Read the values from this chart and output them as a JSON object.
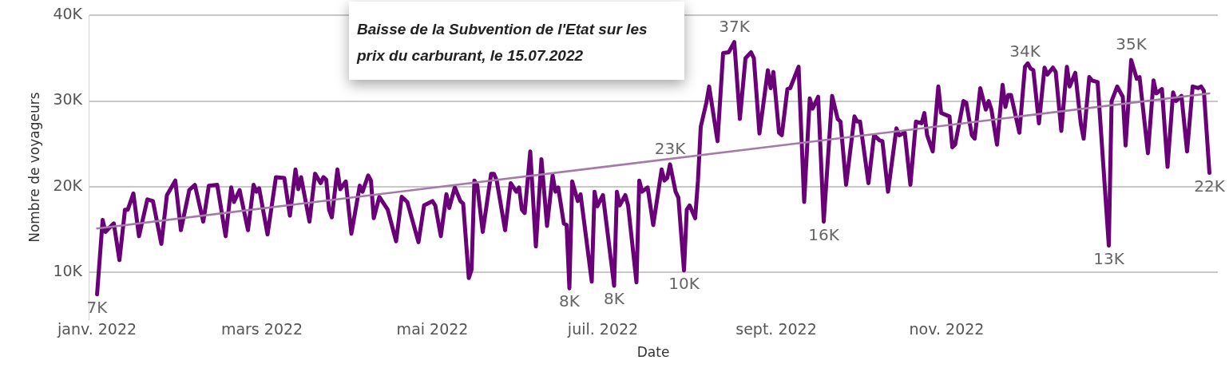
{
  "chart_data": {
    "type": "line",
    "xlabel": "Date",
    "ylabel": "Nombre de voyageurs",
    "annotations": [
      "Baisse de la Subvention de l'Etat sur les prix du carburant, le 15.07.2022"
    ],
    "x": [
      "2022-01-01",
      "2022-01-03",
      "2022-01-04",
      "2022-01-07",
      "2022-01-09",
      "2022-01-11",
      "2022-01-12",
      "2022-01-14",
      "2022-01-16",
      "2022-01-19",
      "2022-01-21",
      "2022-01-24",
      "2022-01-26",
      "2022-01-29",
      "2022-01-31",
      "2022-02-03",
      "2022-02-05",
      "2022-02-08",
      "2022-02-10",
      "2022-02-13",
      "2022-02-16",
      "2022-02-18",
      "2022-02-19",
      "2022-02-21",
      "2022-02-24",
      "2022-02-26",
      "2022-02-27",
      "2022-02-28",
      "2022-03-03",
      "2022-03-06",
      "2022-03-09",
      "2022-03-11",
      "2022-03-13",
      "2022-03-14",
      "2022-03-15",
      "2022-03-18",
      "2022-03-20",
      "2022-03-22",
      "2022-03-23",
      "2022-03-24",
      "2022-03-25",
      "2022-03-26",
      "2022-03-28",
      "2022-03-29",
      "2022-03-31",
      "2022-04-02",
      "2022-04-05",
      "2022-04-06",
      "2022-04-08",
      "2022-04-09",
      "2022-04-10",
      "2022-04-12",
      "2022-04-15",
      "2022-04-18",
      "2022-04-20",
      "2022-04-22",
      "2022-04-26",
      "2022-04-28",
      "2022-05-01",
      "2022-05-02",
      "2022-05-04",
      "2022-05-06",
      "2022-05-07",
      "2022-05-09",
      "2022-05-11",
      "2022-05-12",
      "2022-05-14",
      "2022-05-15",
      "2022-05-16",
      "2022-05-17",
      "2022-05-19",
      "2022-05-22",
      "2022-05-23",
      "2022-05-24",
      "2022-05-27",
      "2022-05-29",
      "2022-05-31",
      "2022-06-01",
      "2022-06-02",
      "2022-06-03",
      "2022-06-05",
      "2022-06-07",
      "2022-06-09",
      "2022-06-11",
      "2022-06-13",
      "2022-06-14",
      "2022-06-15",
      "2022-06-17",
      "2022-06-18",
      "2022-06-19",
      "2022-06-20",
      "2022-06-22",
      "2022-06-23",
      "2022-06-27",
      "2022-06-28",
      "2022-06-29",
      "2022-07-01",
      "2022-07-05",
      "2022-07-06",
      "2022-07-07",
      "2022-07-09",
      "2022-07-10",
      "2022-07-13",
      "2022-07-14",
      "2022-07-15",
      "2022-07-17",
      "2022-07-19",
      "2022-07-22",
      "2022-07-23",
      "2022-07-24",
      "2022-07-25",
      "2022-07-27",
      "2022-07-28",
      "2022-07-30",
      "2022-07-31",
      "2022-08-01",
      "2022-08-03",
      "2022-08-04",
      "2022-08-05",
      "2022-08-07",
      "2022-08-08",
      "2022-08-11",
      "2022-08-13",
      "2022-08-15",
      "2022-08-17",
      "2022-08-19",
      "2022-08-21",
      "2022-08-23",
      "2022-08-24",
      "2022-08-26",
      "2022-08-29",
      "2022-08-30",
      "2022-08-31",
      "2022-09-02",
      "2022-09-03",
      "2022-09-05",
      "2022-09-06",
      "2022-09-09",
      "2022-09-11",
      "2022-09-13",
      "2022-09-14",
      "2022-09-16",
      "2022-09-18",
      "2022-09-21",
      "2022-09-23",
      "2022-09-24",
      "2022-09-26",
      "2022-09-29",
      "2022-09-30",
      "2022-10-01",
      "2022-10-04",
      "2022-10-06",
      "2022-10-08",
      "2022-10-09",
      "2022-10-11",
      "2022-10-14",
      "2022-10-15",
      "2022-10-17",
      "2022-10-19",
      "2022-10-21",
      "2022-10-23",
      "2022-10-24",
      "2022-10-25",
      "2022-10-27",
      "2022-10-29",
      "2022-10-30",
      "2022-11-02",
      "2022-11-03",
      "2022-11-04",
      "2022-11-07",
      "2022-11-08",
      "2022-11-10",
      "2022-11-11",
      "2022-11-13",
      "2022-11-15",
      "2022-11-16",
      "2022-11-17",
      "2022-11-19",
      "2022-11-21",
      "2022-11-22",
      "2022-11-23",
      "2022-11-24",
      "2022-11-27",
      "2022-11-29",
      "2022-11-30",
      "2022-12-01",
      "2022-12-02",
      "2022-12-04",
      "2022-12-06",
      "2022-12-07",
      "2022-12-09",
      "2022-12-10",
      "2022-12-12",
      "2022-12-14",
      "2022-12-15",
      "2022-12-17",
      "2022-12-19",
      "2022-12-20",
      "2022-12-22",
      "2022-12-23",
      "2022-12-25",
      "2022-12-29",
      "2022-12-30",
      "2023-01-01",
      "2023-01-03",
      "2023-01-04",
      "2023-01-06",
      "2023-01-08",
      "2023-01-09",
      "2023-01-12",
      "2023-01-14",
      "2023-01-15",
      "2023-01-17",
      "2023-01-19",
      "2023-01-21",
      "2023-01-22",
      "2023-01-24",
      "2023-01-26",
      "2023-01-28",
      "2023-01-30",
      "2023-01-31",
      "2023-02-01",
      "2023-02-03"
    ],
    "series": [
      {
        "color": "#690078",
        "values": [
          7400,
          16100,
          14700,
          15700,
          11400,
          17300,
          17300,
          19200,
          14200,
          18500,
          18300,
          13300,
          19000,
          20700,
          14900,
          19600,
          20200,
          15900,
          20100,
          20200,
          14200,
          19900,
          18200,
          19600,
          14900,
          20200,
          19400,
          19800,
          14400,
          21100,
          21000,
          16600,
          22000,
          19700,
          21100,
          15900,
          21500,
          20400,
          21100,
          20800,
          17300,
          16400,
          22000,
          19700,
          20600,
          14500,
          20100,
          19400,
          21300,
          20700,
          16300,
          18800,
          17300,
          13600,
          18800,
          18200,
          13500,
          17800,
          18300,
          17800,
          14200,
          19100,
          17500,
          19900,
          18300,
          18000,
          9300,
          10300,
          20700,
          20200,
          14700,
          21500,
          21500,
          20700,
          14900,
          20400,
          19400,
          19900,
          17300,
          16900,
          24100,
          13000,
          23200,
          15400,
          21300,
          19400,
          19900,
          15700,
          15500,
          8100,
          20600,
          18300,
          19100,
          8900,
          19400,
          17700,
          19000,
          8400,
          19400,
          17800,
          19000,
          17800,
          8800,
          20700,
          19400,
          19900,
          15500,
          22000,
          20700,
          21000,
          22600,
          19400,
          18700,
          10200,
          17300,
          17800,
          16300,
          20700,
          27000,
          29800,
          31700,
          25300,
          35600,
          35700,
          36900,
          27900,
          35000,
          35700,
          35000,
          26200,
          33600,
          31500,
          33400,
          26300,
          26000,
          31400,
          31500,
          34000,
          18200,
          30300,
          29100,
          30500,
          15900,
          30600,
          27900,
          27600,
          20200,
          28200,
          27600,
          27600,
          20400,
          26000,
          25400,
          25300,
          19400,
          26800,
          26000,
          26300,
          20200,
          27600,
          27400,
          28600,
          26000,
          24100,
          31700,
          28600,
          28200,
          24600,
          24900,
          30000,
          29800,
          26000,
          25600,
          31500,
          29000,
          30000,
          29000,
          24900,
          31900,
          29300,
          30700,
          30700,
          26300,
          34000,
          34400,
          33800,
          33600,
          27400,
          33900,
          33100,
          33900,
          33400,
          26500,
          34000,
          31700,
          33300,
          27300,
          25600,
          32800,
          32400,
          32200,
          13100,
          30000,
          31700,
          30500,
          24800,
          34800,
          32600,
          32800,
          23900,
          32400,
          30900,
          31400,
          22300,
          31000,
          30000,
          30600,
          24100,
          31700,
          31500,
          31700,
          31200,
          21600
        ],
        "value_labels": [
          "7K",
          null,
          null,
          null,
          null,
          null,
          null,
          null,
          null,
          null,
          null,
          null,
          null,
          null,
          null,
          null,
          null,
          null,
          null,
          null,
          null,
          null,
          null,
          null,
          null,
          null,
          null,
          null,
          null,
          null,
          null,
          null,
          null,
          null,
          null,
          null,
          null,
          null,
          null,
          null,
          null,
          null,
          null,
          null,
          null,
          null,
          null,
          null,
          null,
          null,
          null,
          null,
          null,
          null,
          null,
          null,
          null,
          null,
          null,
          null,
          null,
          null,
          null,
          null,
          null,
          null,
          null,
          null,
          null,
          null,
          null,
          null,
          null,
          null,
          null,
          null,
          null,
          null,
          null,
          null,
          null,
          null,
          null,
          null,
          null,
          null,
          null,
          null,
          null,
          "8K",
          null,
          null,
          null,
          null,
          null,
          null,
          null,
          "8K",
          null,
          null,
          null,
          null,
          null,
          null,
          null,
          null,
          null,
          null,
          null,
          null,
          "23K",
          null,
          null,
          "10K",
          null,
          null,
          null,
          null,
          null,
          null,
          null,
          null,
          null,
          null,
          "37K",
          null,
          null,
          null,
          null,
          null,
          null,
          null,
          null,
          null,
          null,
          null,
          null,
          null,
          null,
          null,
          null,
          null,
          "16K",
          null,
          null,
          null,
          null,
          null,
          null,
          null,
          null,
          null,
          null,
          null,
          null,
          null,
          null,
          null,
          null,
          null,
          null,
          null,
          null,
          null,
          null,
          null,
          null,
          null,
          null,
          null,
          null,
          null,
          null,
          null,
          null,
          null,
          null,
          null,
          null,
          null,
          null,
          null,
          null,
          "34K",
          null,
          null,
          null,
          null,
          null,
          null,
          null,
          null,
          null,
          null,
          null,
          null,
          null,
          null,
          null,
          null,
          null,
          "13K",
          null,
          null,
          null,
          null,
          "35K",
          null,
          null,
          null,
          null,
          null,
          null,
          null,
          null,
          null,
          null,
          null,
          null,
          null,
          null,
          null,
          "22K"
        ]
      },
      {
        "type": "line",
        "color": "#a47aa8",
        "x": [
          "2022-01-01",
          "2023-02-03"
        ],
        "values": [
          15100,
          30900
        ]
      }
    ],
    "xlim": [
      "2021-12-29",
      "2023-02-06"
    ],
    "ylim": [
      4500,
      40000
    ],
    "xticks": [
      {
        "value": "2022-01-01",
        "label": "janv. 2022"
      },
      {
        "value": "2022-03-01",
        "label": "mars 2022"
      },
      {
        "value": "2022-05-01",
        "label": "mai 2022"
      },
      {
        "value": "2022-07-01",
        "label": "juil. 2022"
      },
      {
        "value": "2022-09-01",
        "label": "sept. 2022"
      },
      {
        "value": "2022-11-01",
        "label": "nov. 2022"
      }
    ],
    "yticks": [
      {
        "value": 10000,
        "label": "10K"
      },
      {
        "value": 20000,
        "label": "20K"
      },
      {
        "value": 30000,
        "label": "30K"
      },
      {
        "value": 40000,
        "label": "40K"
      }
    ],
    "grid": "y"
  }
}
